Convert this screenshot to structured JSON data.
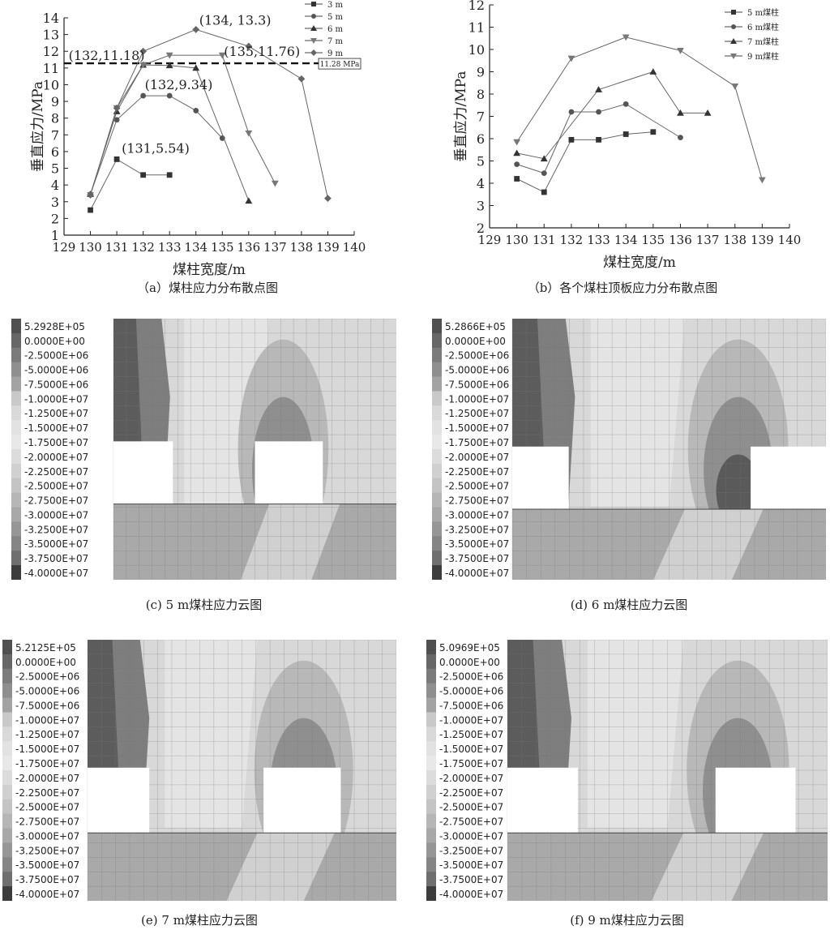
{
  "chart_data": [
    {
      "id": "a",
      "type": "scatter",
      "caption": "（a）煤柱应力分布散点图",
      "xlabel": "煤柱宽度/m",
      "ylabel": "垂直应力/MPa",
      "xlim": [
        129,
        140
      ],
      "ylim": [
        1,
        14
      ],
      "xticks": [
        129,
        130,
        131,
        132,
        133,
        134,
        135,
        136,
        137,
        138,
        139,
        140
      ],
      "yticks": [
        1,
        2,
        3,
        4,
        5,
        6,
        7,
        8,
        9,
        10,
        11,
        12,
        13,
        14
      ],
      "legend_position": "top-right",
      "series": [
        {
          "name": "3 m",
          "marker": "square",
          "x": [
            130,
            131,
            132,
            133
          ],
          "y": [
            2.5,
            5.54,
            4.6,
            4.6
          ]
        },
        {
          "name": "5 m",
          "marker": "circle",
          "x": [
            130,
            131,
            132,
            133,
            134,
            135
          ],
          "y": [
            3.45,
            7.9,
            9.34,
            9.34,
            8.45,
            6.8
          ]
        },
        {
          "name": "6 m",
          "marker": "triangle-up",
          "x": [
            130,
            131,
            132,
            133,
            134,
            136
          ],
          "y": [
            3.45,
            8.4,
            11.18,
            11.15,
            11.0,
            3.05
          ]
        },
        {
          "name": "7 m",
          "marker": "triangle-down",
          "x": [
            130,
            131,
            132,
            133,
            135,
            136,
            137
          ],
          "y": [
            3.4,
            8.6,
            11.18,
            11.76,
            11.76,
            7.1,
            4.1
          ]
        },
        {
          "name": "9 m",
          "marker": "diamond",
          "x": [
            130,
            131,
            132,
            134,
            136,
            138,
            139
          ],
          "y": [
            3.4,
            8.6,
            12.0,
            13.3,
            12.3,
            10.35,
            3.2
          ]
        }
      ],
      "reference_line": {
        "y": 11.28,
        "label": "11.28 MPa"
      },
      "annotations": [
        {
          "text": "(134, 13.3)",
          "x": 134,
          "y": 13.3
        },
        {
          "text": "(132,11.18)",
          "x": 132,
          "y": 11.18
        },
        {
          "text": "(135,11.76)",
          "x": 135,
          "y": 11.76
        },
        {
          "text": "(132,9.34)",
          "x": 132,
          "y": 9.34
        },
        {
          "text": "(131,5.54)",
          "x": 131,
          "y": 5.54
        }
      ]
    },
    {
      "id": "b",
      "type": "scatter",
      "caption": "（b）各个煤柱顶板应力分布散点图",
      "xlabel": "煤柱宽度/m",
      "ylabel": "垂直应力/MPa",
      "xlim": [
        129,
        140
      ],
      "ylim": [
        2,
        12
      ],
      "xticks": [
        129,
        130,
        131,
        132,
        133,
        134,
        135,
        136,
        137,
        138,
        139,
        140
      ],
      "yticks": [
        2,
        3,
        4,
        5,
        6,
        7,
        8,
        9,
        10,
        11,
        12
      ],
      "legend_position": "top-right",
      "series": [
        {
          "name": "5 m煤柱",
          "marker": "square",
          "x": [
            130,
            131,
            132,
            133,
            134,
            135
          ],
          "y": [
            4.2,
            3.6,
            5.95,
            5.95,
            6.2,
            6.3
          ]
        },
        {
          "name": "6 m煤柱",
          "marker": "circle",
          "x": [
            130,
            131,
            132,
            133,
            134,
            136
          ],
          "y": [
            4.85,
            4.45,
            7.2,
            7.2,
            7.55,
            6.05
          ]
        },
        {
          "name": "7 m煤柱",
          "marker": "triangle-up",
          "x": [
            130,
            131,
            133,
            135,
            136,
            137
          ],
          "y": [
            5.35,
            5.1,
            8.2,
            9.0,
            7.15,
            7.15
          ]
        },
        {
          "name": "9 m煤柱",
          "marker": "triangle-down",
          "x": [
            130,
            132,
            134,
            136,
            138,
            139
          ],
          "y": [
            5.85,
            9.6,
            10.55,
            9.95,
            8.35,
            4.15
          ]
        }
      ]
    }
  ],
  "contour_legend": [
    "5.2928E+05",
    "0.0000E+00",
    "-2.5000E+06",
    "-5.0000E+06",
    "-7.5000E+06",
    "-1.0000E+07",
    "-1.2500E+07",
    "-1.5000E+07",
    "-1.7500E+07",
    "-2.0000E+07",
    "-2.2500E+07",
    "-2.5000E+07",
    "-2.7500E+07",
    "-3.0000E+07",
    "-3.2500E+07",
    "-3.5000E+07",
    "-3.7500E+07",
    "-4.0000E+07"
  ],
  "contour_panels": [
    {
      "id": "c",
      "caption": "(c) 5 m煤柱应力云图",
      "max_label": "5.2928E+05"
    },
    {
      "id": "d",
      "caption": "(d) 6 m煤柱应力云图",
      "max_label": "5.2866E+05"
    },
    {
      "id": "e",
      "caption": "(e) 7 m煤柱应力云图",
      "max_label": "5.2125E+05"
    },
    {
      "id": "f",
      "caption": "(f) 9 m煤柱应力云图",
      "max_label": "5.0969E+05"
    }
  ],
  "contour_colors": [
    "#505050",
    "#676767",
    "#7b7b7b",
    "#8f8f8f",
    "#a3a3a3",
    "#c9c9c9",
    "#d9d9d9",
    "#e2e2e2",
    "#e8e8e8",
    "#dcdcdc",
    "#d0d0d0",
    "#c4c4c4",
    "#b6b6b6",
    "#a8a8a8",
    "#969696",
    "#858585",
    "#6f6f6f",
    "#3c3c3c"
  ]
}
